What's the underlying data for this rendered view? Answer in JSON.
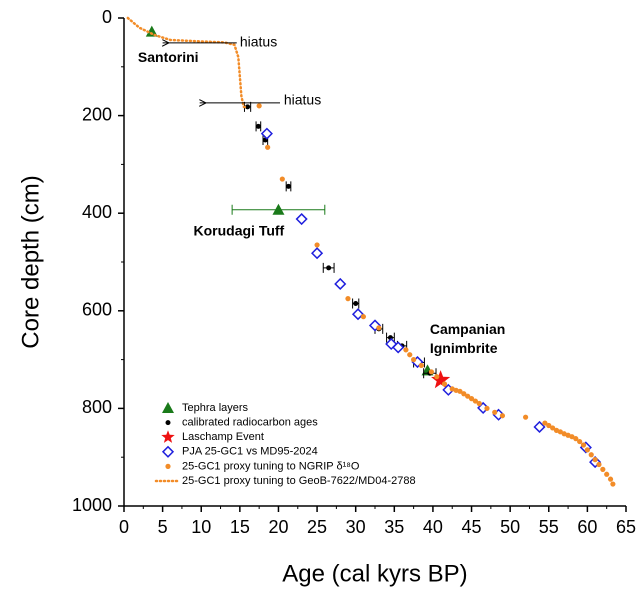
{
  "chart_data": {
    "type": "scatter",
    "x_label": "Age (cal kyrs BP)",
    "y_label": "Core depth (cm)",
    "xlim": [
      0,
      65
    ],
    "xticks": [
      0,
      5,
      10,
      15,
      20,
      25,
      30,
      35,
      40,
      45,
      50,
      55,
      60,
      65
    ],
    "ylim": [
      0,
      1000
    ],
    "yticks": [
      0,
      200,
      400,
      600,
      800,
      1000
    ],
    "y_inverted": true,
    "legend": "lower left",
    "annotations": [
      [
        "hiatus"
      ],
      [
        "hiatus"
      ],
      [
        "Santorini"
      ],
      [
        "Korudagi Tuff"
      ],
      [
        "Campanian",
        "Ignimbrite"
      ]
    ],
    "series": [
      {
        "name": "Tephra layers",
        "color": "#1a7a1a",
        "marker": "triangle",
        "x": [
          3.6,
          20,
          39.3
        ],
        "y": [
          28,
          393,
          722
        ],
        "xerr": [
          null,
          6,
          null
        ]
      },
      {
        "name": "calibrated radiocarbon ages",
        "color": "#000000",
        "marker": "dot",
        "x": [
          16,
          17.4,
          18.3,
          21.3,
          26.5,
          30,
          33,
          34.5,
          36,
          38.2,
          39.6
        ],
        "y": [
          182,
          222,
          250,
          345,
          512,
          585,
          637,
          655,
          672,
          706,
          728
        ],
        "xerr": [
          0.4,
          0.3,
          0.3,
          0.3,
          0.7,
          0.4,
          0.5,
          0.5,
          0.6,
          0.7,
          0.8
        ]
      },
      {
        "name": "Laschamp Event",
        "color": "#ee1111",
        "marker": "star",
        "x": [
          41
        ],
        "y": [
          742
        ]
      },
      {
        "name": "PJA  25-GC1 vs MD95-2024",
        "color": "#1f1fdd",
        "marker": "diamond",
        "x": [
          18.5,
          23,
          25,
          28,
          30.3,
          32.5,
          34.6,
          35.5,
          38,
          42,
          46.5,
          48.5,
          53.8,
          59.8,
          61
        ],
        "y": [
          237,
          412,
          482,
          545,
          607,
          630,
          668,
          675,
          705,
          762,
          799,
          813,
          838,
          880,
          910
        ]
      },
      {
        "name": "25-GC1 proxy tuning to NGRIP δ¹⁸O",
        "color": "#f28c28",
        "marker": "circle",
        "x": [
          17.5,
          18.6,
          20.5,
          25,
          29,
          31,
          33,
          36.5,
          37,
          37.5,
          38.5,
          39.8,
          40.5,
          41.5,
          42.5,
          43,
          43.5,
          44,
          44.5,
          45,
          45.5,
          46,
          47,
          48,
          49,
          52,
          54.5,
          55,
          55.5,
          56,
          56.5,
          57,
          57.5,
          58,
          58.5,
          59,
          59.5,
          60,
          60.5,
          61,
          61.5,
          62,
          62.5,
          63,
          63.3
        ],
        "y": [
          180,
          265,
          330,
          465,
          575,
          612,
          635,
          680,
          690,
          700,
          712,
          725,
          735,
          750,
          760,
          763,
          765,
          770,
          775,
          780,
          785,
          790,
          800,
          808,
          815,
          818,
          830,
          835,
          840,
          845,
          848,
          852,
          855,
          858,
          862,
          868,
          875,
          885,
          895,
          905,
          915,
          925,
          935,
          945,
          955
        ]
      },
      {
        "name": "25-GC1 proxy tuning to GeoB-7622/MD04-2788",
        "color": "#f28c28",
        "marker": "dotted-line",
        "x": [
          0.5,
          2,
          4,
          6,
          10,
          13,
          14.3,
          14.8,
          15,
          15.2,
          15.5,
          16
        ],
        "y": [
          0,
          20,
          35,
          45,
          48,
          50,
          55,
          80,
          120,
          160,
          182,
          183
        ]
      }
    ]
  }
}
